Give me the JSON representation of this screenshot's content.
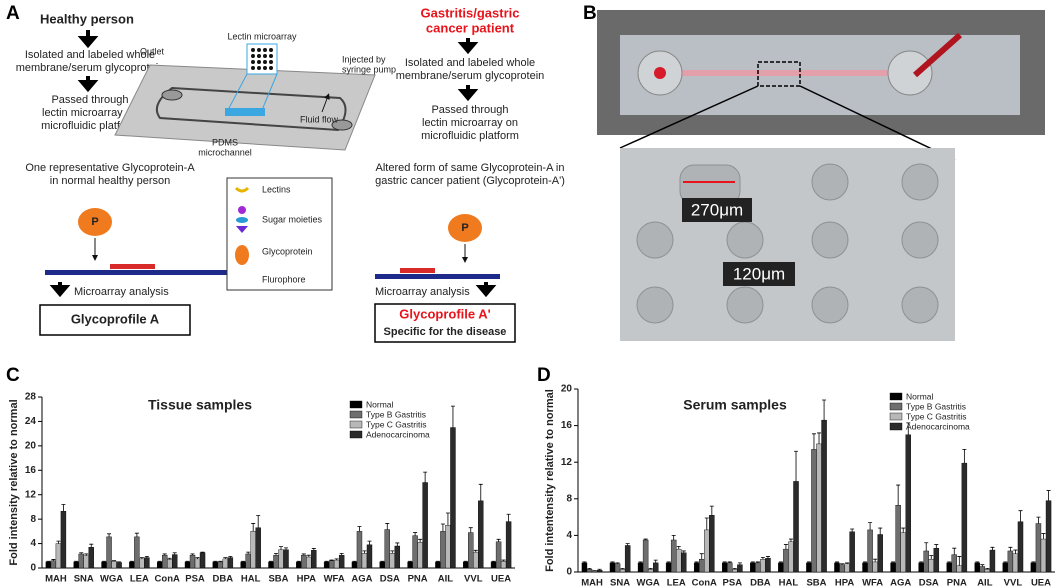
{
  "panel_a": {
    "label": "A",
    "healthy": {
      "title": "Healthy person",
      "step1": [
        "Isolated and labeled whole",
        "membrane/serum glycoprotein"
      ],
      "step2": [
        "Passed through",
        "lectin microarray on",
        "microfluidic platform"
      ],
      "caption": [
        "One representative Glycoprotein-A",
        "in normal healthy person"
      ],
      "analysis": "Microarray analysis",
      "result": "Glycoprofile A"
    },
    "patient": {
      "title": [
        "Gastritis/gastric",
        "cancer patient"
      ],
      "step1": [
        "Isolated and labeled whole",
        "membrane/serum glycoprotein"
      ],
      "step2": [
        "Passed through",
        "lectin microarray on",
        "microfluidic platform"
      ],
      "caption": [
        "Altered form of same Glycoprotein-A in",
        "gastric cancer patient (Glycoprotein-A')"
      ],
      "analysis": "Microarray analysis",
      "result": [
        "Glycoprofile A'",
        "Specific for the disease"
      ]
    },
    "device": {
      "microarray": "Lectin microarray",
      "outlet": "Outlet",
      "pump": [
        "Injected by",
        "syringe pump"
      ],
      "channel": [
        "PDMS",
        "microchannel"
      ],
      "flow": "Fluid flow"
    },
    "legend": [
      "Lectins",
      "Sugar moieties",
      "Glycoprotein",
      "Flurophore"
    ]
  },
  "panel_b": {
    "label": "B",
    "scale_large": "270μm",
    "scale_small": "120μm"
  },
  "panel_c": {
    "label": "C"
  },
  "panel_d": {
    "label": "D"
  },
  "chart_data": [
    {
      "type": "bar",
      "title": "Tissue samples",
      "y_label": "Fold intensity relative to normal",
      "categories": [
        "MAH",
        "SNA",
        "WGA",
        "LEA",
        "ConA",
        "PSA",
        "DBA",
        "HAL",
        "SBA",
        "HPA",
        "WFA",
        "AGA",
        "DSA",
        "PNA",
        "AIL",
        "VVL",
        "UEA"
      ],
      "ylim": [
        0,
        28
      ],
      "yticks": [
        0,
        4,
        8,
        12,
        16,
        20,
        24,
        28
      ],
      "legend": "upper right",
      "series": [
        {
          "name": "Normal",
          "color": "#000000",
          "values": [
            1,
            1,
            1,
            1,
            1,
            1,
            1,
            1,
            1,
            1,
            1,
            1,
            1,
            1,
            1,
            1,
            1
          ],
          "errors": [
            0.1,
            0.1,
            0.1,
            0.1,
            0.1,
            0.1,
            0.1,
            0.1,
            0.1,
            0.1,
            0.1,
            0.1,
            0.1,
            0.1,
            0.1,
            0.1,
            0.1
          ]
        },
        {
          "name": "Type B Gastritis",
          "color": "#6e6e6e",
          "values": [
            1.2,
            2.3,
            5.1,
            5.1,
            2.1,
            2.1,
            1,
            2.3,
            2.1,
            2.1,
            1.2,
            6,
            6.3,
            5.3,
            6,
            5.8,
            4.3
          ],
          "errors": [
            0.2,
            0.2,
            0.5,
            0.6,
            0.2,
            0.2,
            0.1,
            0.3,
            0.3,
            0.2,
            0.1,
            0.8,
            1,
            0.5,
            1.2,
            0.8,
            0.4
          ]
        },
        {
          "name": "Type C Gastritis",
          "color": "#b8b8b8",
          "values": [
            4,
            2,
            1.1,
            1.5,
            1.4,
            1.5,
            1.5,
            6,
            3,
            1.8,
            1.3,
            2.4,
            2.4,
            4.2,
            7,
            2.6,
            1.1
          ],
          "errors": [
            0.4,
            0.3,
            0.1,
            0.2,
            0.2,
            0.2,
            0.2,
            1.3,
            0.5,
            0.3,
            0.2,
            0.4,
            0.4,
            0.5,
            2,
            0.3,
            0.2
          ]
        },
        {
          "name": "Adenocarcinoma",
          "color": "#2b2b2b",
          "values": [
            9.3,
            3.4,
            0.9,
            1.7,
            2.2,
            2.5,
            1.7,
            6.6,
            3,
            2.9,
            2.1,
            3.8,
            3.6,
            14,
            23,
            11,
            7.6
          ],
          "errors": [
            1.1,
            0.5,
            0.1,
            0.2,
            0.3,
            0.1,
            0.2,
            2,
            0.3,
            0.3,
            0.3,
            0.6,
            0.5,
            1.7,
            3.5,
            2.7,
            1.2
          ]
        }
      ]
    },
    {
      "type": "bar",
      "title": "Serum samples",
      "y_label": "Fold intentensity relative to normal",
      "categories": [
        "MAH",
        "SNA",
        "WGA",
        "LEA",
        "ConA",
        "PSA",
        "DBA",
        "HAL",
        "SBA",
        "HPA",
        "WFA",
        "AGA",
        "DSA",
        "PNA",
        "AIL",
        "VVL",
        "UEA"
      ],
      "ylim": [
        0,
        20
      ],
      "yticks": [
        0,
        4,
        8,
        12,
        16,
        20
      ],
      "legend": "upper right",
      "series": [
        {
          "name": "Normal",
          "color": "#000000",
          "values": [
            1,
            1,
            1,
            1,
            1,
            1,
            1,
            1,
            1,
            1,
            1,
            1,
            1,
            1,
            1,
            1,
            1
          ],
          "errors": [
            0.1,
            0.1,
            0.1,
            0.1,
            0.1,
            0.1,
            0.1,
            0.1,
            0.1,
            0.1,
            0.1,
            0.1,
            0.1,
            0.1,
            0.1,
            0.1,
            0.1
          ]
        },
        {
          "name": "Type B Gastritis",
          "color": "#6e6e6e",
          "values": [
            0.3,
            0.9,
            3.5,
            3.5,
            1.4,
            1,
            1,
            2.5,
            13.4,
            0.8,
            4.6,
            7.3,
            2.3,
            1.9,
            0.6,
            2.3,
            5.3
          ],
          "errors": [
            0.1,
            0.1,
            0.1,
            0.5,
            0.6,
            0.1,
            0.1,
            0.5,
            1.7,
            0.1,
            0.8,
            2.2,
            0.9,
            0.7,
            0.2,
            0.4,
            0.7
          ]
        },
        {
          "name": "Type C Gastritis",
          "color": "#b8b8b8",
          "values": [
            0.1,
            0.3,
            0.3,
            2.5,
            4.6,
            0.3,
            1.4,
            3.3,
            14,
            0.9,
            1.1,
            4.3,
            1.4,
            0.7,
            0.3,
            2,
            3.6
          ],
          "errors": [
            0.05,
            0.1,
            0.1,
            0.3,
            1.3,
            0.1,
            0.2,
            0.3,
            1.2,
            0.1,
            0.3,
            0.5,
            0.4,
            1,
            0.1,
            0.4,
            0.6
          ]
        },
        {
          "name": "Adenocarcinoma",
          "color": "#2b2b2b",
          "values": [
            0.2,
            2.9,
            1,
            2.1,
            6.2,
            0.8,
            1.5,
            9.9,
            16.6,
            4.4,
            4.1,
            15,
            2.6,
            11.9,
            2.4,
            5.5,
            7.8
          ],
          "errors": [
            0.1,
            0.2,
            0.3,
            0.2,
            1,
            0.2,
            0.2,
            3.3,
            2.2,
            0.3,
            0.7,
            1.3,
            0.4,
            1.5,
            0.3,
            1.2,
            1.1
          ]
        }
      ]
    }
  ]
}
